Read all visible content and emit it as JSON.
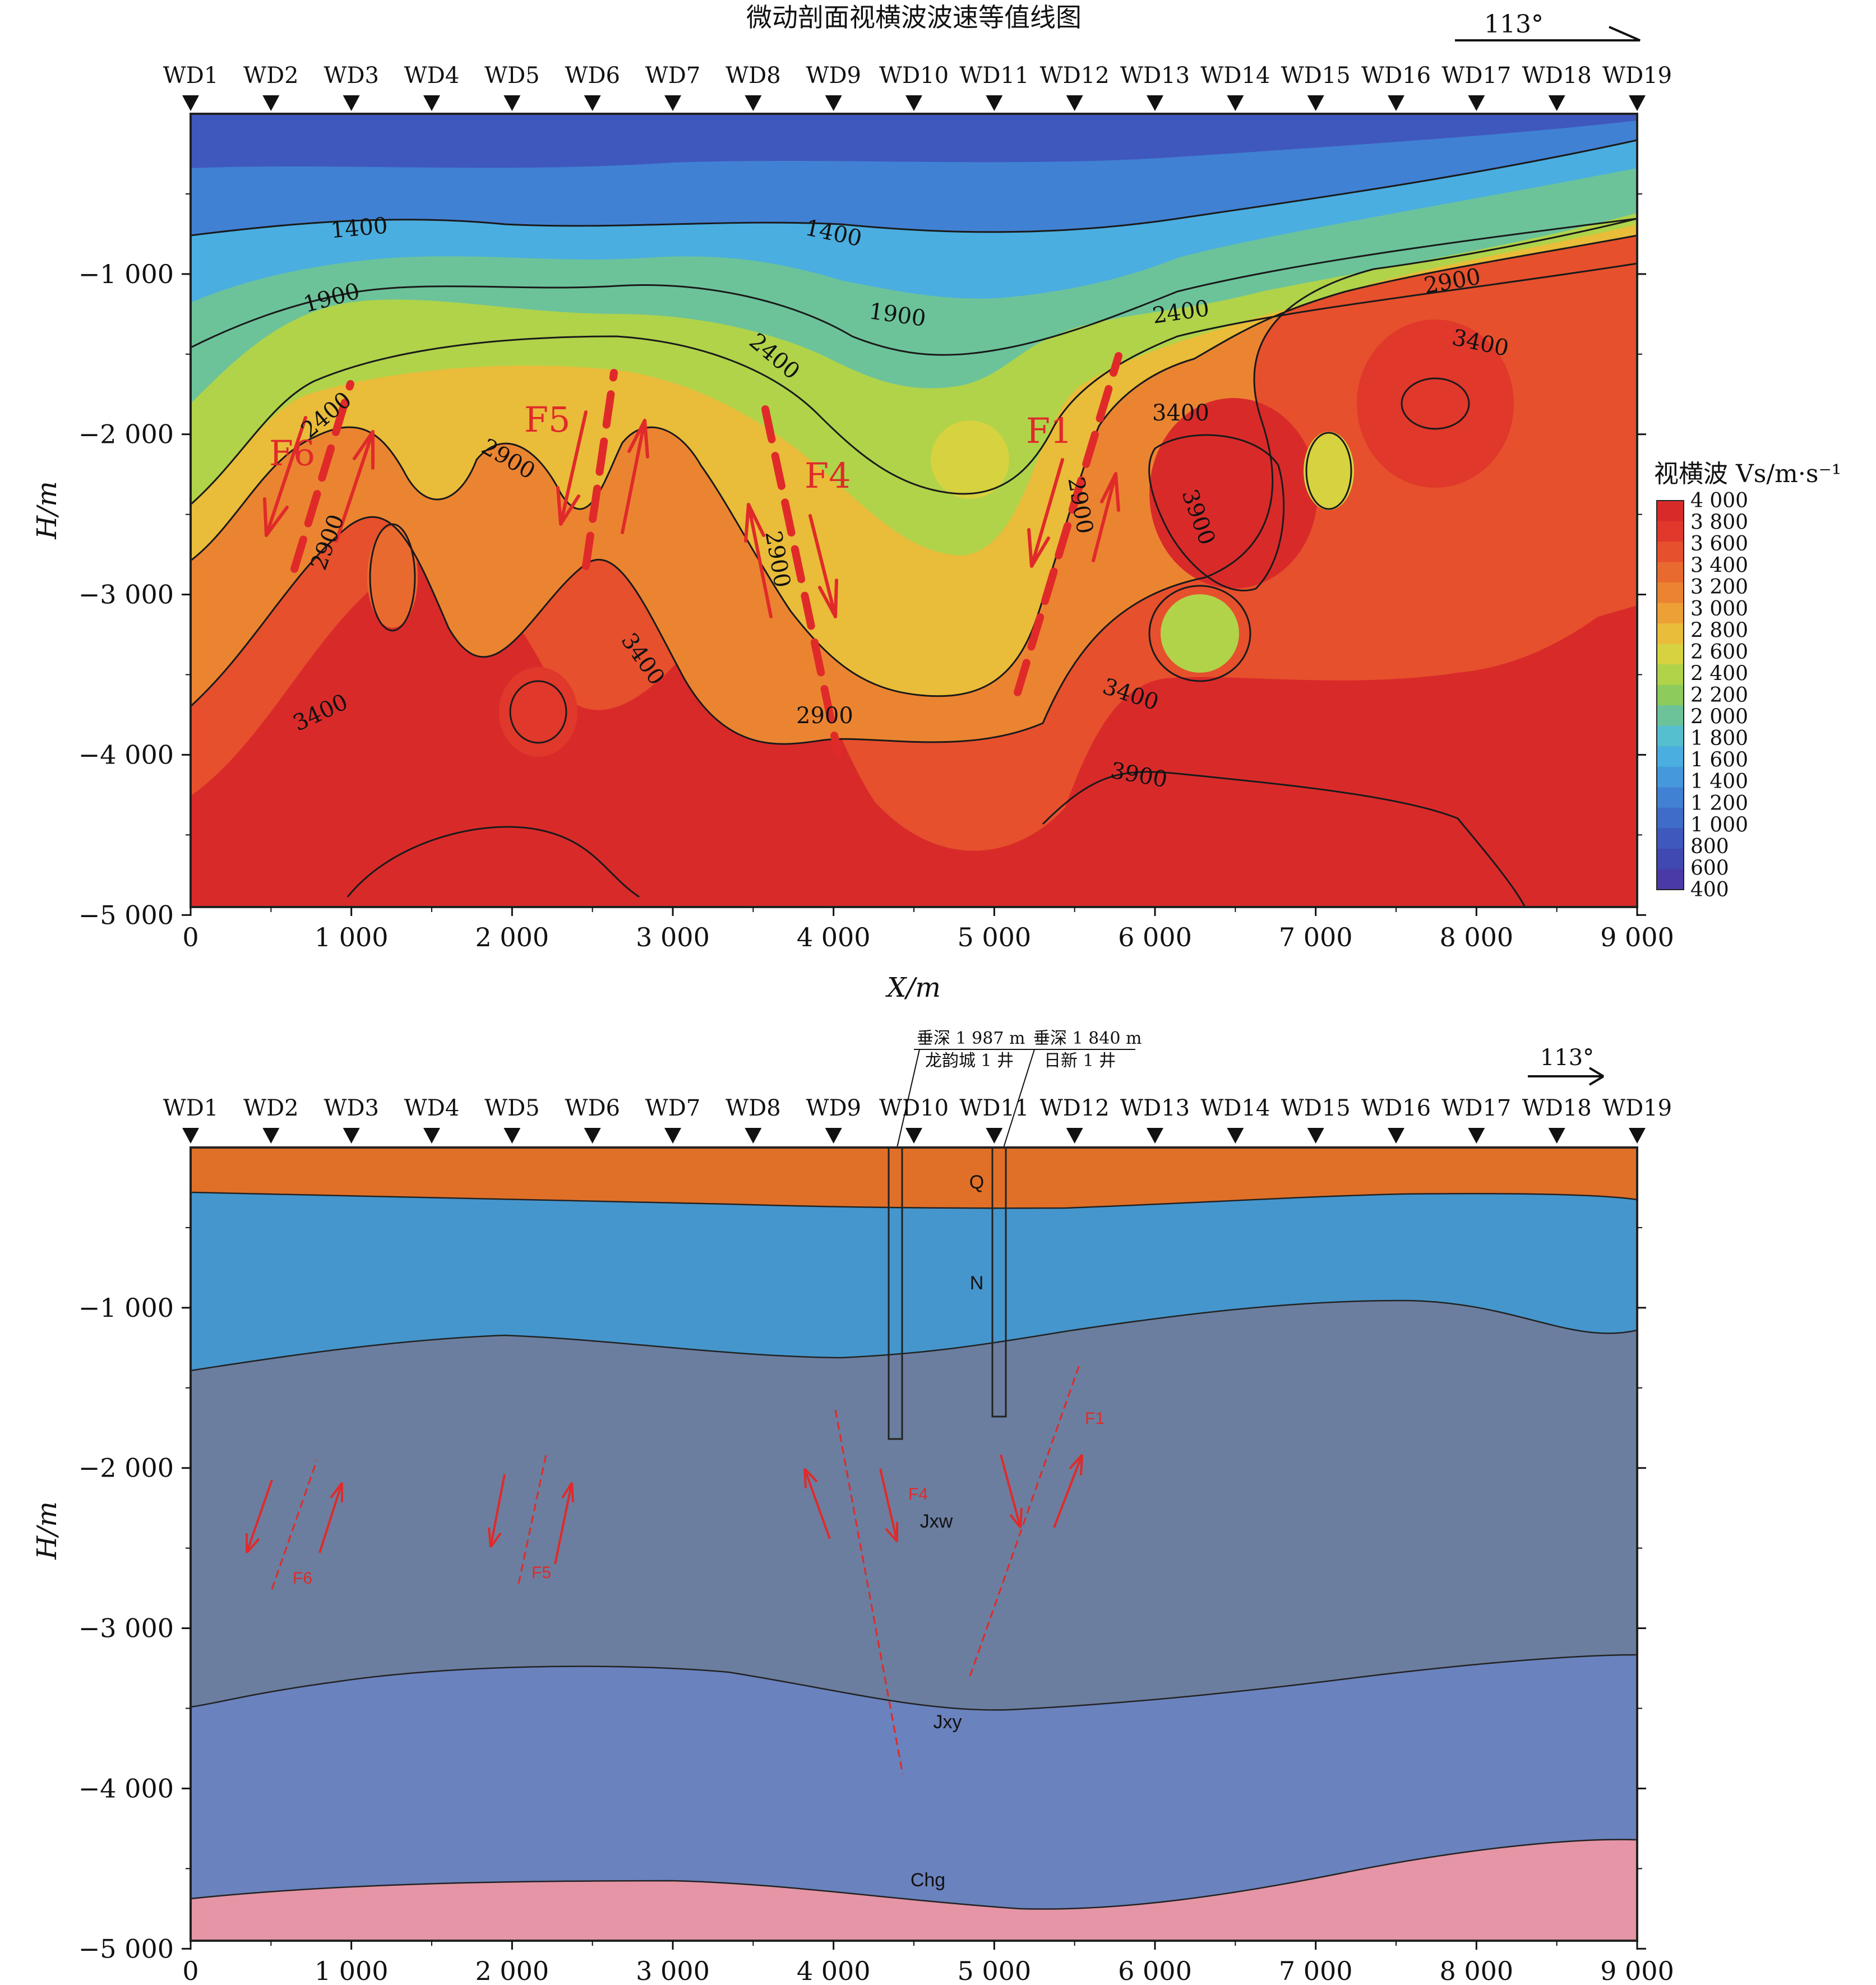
{
  "top": {
    "title": "微动剖面视横波波速等值线图",
    "azimuth": "113°",
    "stations": [
      "WD1",
      "WD2",
      "WD3",
      "WD4",
      "WD5",
      "WD6",
      "WD7",
      "WD8",
      "WD9",
      "WD10",
      "WD11",
      "WD12",
      "WD13",
      "WD14",
      "WD15",
      "WD16",
      "WD17",
      "WD18",
      "WD19"
    ],
    "y_axis_label": "H/m",
    "x_axis_label": "X/m",
    "y_ticks": [
      "−1 000",
      "−2 000",
      "−3 000",
      "−4 000",
      "−5 000"
    ],
    "x_ticks": [
      "0",
      "1 000",
      "2 000",
      "3 000",
      "4 000",
      "5 000",
      "6 000",
      "7 000",
      "8 000",
      "9 000"
    ],
    "contour_labels": [
      "1400",
      "1400",
      "1900",
      "1900",
      "2400",
      "2400",
      "2400",
      "2900",
      "2900",
      "2900",
      "2900",
      "2900",
      "2900",
      "3400",
      "3400",
      "3400",
      "3400",
      "3400",
      "3900",
      "3900"
    ],
    "fault_labels": [
      "F6",
      "F5",
      "F4",
      "F1"
    ],
    "colorbar": {
      "title": "视横波 Vs/m·s⁻¹",
      "ticks": [
        "4 000",
        "3 800",
        "3 600",
        "3 400",
        "3 200",
        "3 000",
        "2 800",
        "2 600",
        "2 400",
        "2 200",
        "2 000",
        "1 800",
        "1 600",
        "1 400",
        "1 200",
        "1 000",
        "800",
        "600",
        "400"
      ],
      "colors": [
        "#d92a2a",
        "#e0382b",
        "#e6502d",
        "#e96a2f",
        "#eb8431",
        "#eda035",
        "#e9bc3a",
        "#d7d23f",
        "#b0d34a",
        "#8ccb5c",
        "#6cc39a",
        "#55bfd0",
        "#4aaee0",
        "#4598dc",
        "#4181d3",
        "#3f6cc8",
        "#3f58bd",
        "#4048b2",
        "#4a3aa8"
      ]
    }
  },
  "bottom": {
    "azimuth": "113°",
    "stations": [
      "WD1",
      "WD2",
      "WD3",
      "WD4",
      "WD5",
      "WD6",
      "WD7",
      "WD8",
      "WD9",
      "WD10",
      "WD11",
      "WD12",
      "WD13",
      "WD14",
      "WD15",
      "WD16",
      "WD17",
      "WD18",
      "WD19"
    ],
    "well1": {
      "depth": "垂深 1 987 m",
      "name": "龙韵城 1 井"
    },
    "well2": {
      "depth": "垂深 1 840 m",
      "name": "日新 1 井"
    },
    "y_axis_label": "H/m",
    "y_ticks": [
      "−1 000",
      "−2 000",
      "−3 000",
      "−4 000",
      "−5 000"
    ],
    "x_ticks": [
      "0",
      "1 000",
      "2 000",
      "3 000",
      "4 000",
      "5 000",
      "6 000",
      "7 000",
      "8 000",
      "9 000"
    ],
    "layers": {
      "q": "Q",
      "n": "N",
      "jxw": "Jxw",
      "jxy": "Jxy",
      "chg": "Chg"
    },
    "layer_colors": {
      "q": "#e07028",
      "n": "#4596cc",
      "jxw": "#6b7e9f",
      "jxy": "#6a82bd",
      "chg": "#e595a5"
    },
    "fault_labels": [
      "F6",
      "F5",
      "F4",
      "F1"
    ]
  }
}
